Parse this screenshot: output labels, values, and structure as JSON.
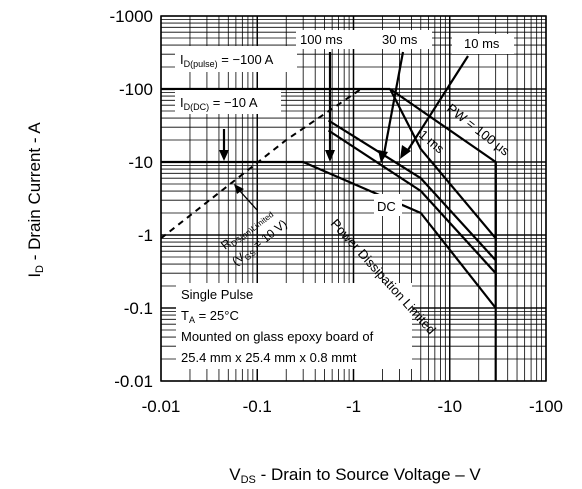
{
  "chart_data": {
    "type": "line",
    "x_scale": "log",
    "y_scale": "log",
    "xlabel_main": "V",
    "xlabel_sub": "DS",
    "xlabel_rest": " - Drain to Source Voltage – V",
    "ylabel_main": "I",
    "ylabel_sub": "D",
    "ylabel_rest": " - Drain Current - A",
    "xlim": [
      0.01,
      100
    ],
    "ylim": [
      0.01,
      1000
    ],
    "x_ticks": [
      {
        "value": 0.01,
        "label": "-0.01"
      },
      {
        "value": 0.1,
        "label": "-0.1"
      },
      {
        "value": 1,
        "label": "-1"
      },
      {
        "value": 10,
        "label": "-10"
      },
      {
        "value": 100,
        "label": "-100"
      }
    ],
    "y_ticks": [
      {
        "value": 1000,
        "label": "-1000"
      },
      {
        "value": 100,
        "label": "-100"
      },
      {
        "value": 10,
        "label": "-10"
      },
      {
        "value": 1,
        "label": "-1"
      },
      {
        "value": 0.1,
        "label": "-0.1"
      },
      {
        "value": 0.01,
        "label": "-0.01"
      }
    ],
    "grid": true,
    "series": [
      {
        "name": "10 ms",
        "points": [
          [
            2.4,
            100
          ],
          [
            30,
            10
          ],
          [
            30,
            0.2
          ]
        ]
      },
      {
        "name": "30 ms",
        "points": [
          [
            0.55,
            37
          ],
          [
            5,
            6
          ],
          [
            30,
            0.45
          ]
        ]
      },
      {
        "name": "100 ms",
        "points": [
          [
            0.55,
            27
          ],
          [
            5,
            4
          ],
          [
            30,
            0.3
          ]
        ]
      },
      {
        "name": "DC",
        "points": [
          [
            0.3,
            10
          ],
          [
            5,
            2
          ],
          [
            30,
            0.1
          ]
        ]
      },
      {
        "name": "1 ms",
        "points": [
          [
            2.4,
            100
          ],
          [
            5,
            15
          ],
          [
            30,
            0.9
          ]
        ]
      }
    ],
    "limit_lines": [
      {
        "name": "I_D(pulse) limit",
        "points": [
          [
            0.01,
            100
          ],
          [
            2.4,
            100
          ]
        ]
      },
      {
        "name": "I_D(DC) limit",
        "points": [
          [
            0.01,
            10
          ],
          [
            0.3,
            10
          ]
        ]
      },
      {
        "name": "V_DS max",
        "points": [
          [
            30,
            0.01
          ],
          [
            30,
            10
          ]
        ]
      },
      {
        "name": "R_DS(on) limit",
        "dashed": true,
        "points": [
          [
            0.01,
            0.9
          ],
          [
            0.2,
            20
          ],
          [
            1.2,
            100
          ]
        ]
      }
    ],
    "annotations": {
      "id_pulse_main": "I",
      "id_pulse_sub": "D(pulse)",
      "id_pulse_rest": " = −100 A",
      "id_dc_main": "I",
      "id_dc_sub": "D(DC)",
      "id_dc_rest": " = −10 A",
      "rds_main": "R",
      "rds_sub": "DS(on)Limited",
      "vgs_open": "(V",
      "vgs_sub": "GS",
      "vgs_rest": " = 10 V)",
      "label_100ms": "100 ms",
      "label_30ms": "30 ms",
      "label_10ms": "10 ms",
      "label_pw": "PW = 100 μs",
      "label_1ms": "1 ms",
      "label_dc": "DC",
      "label_pdl": "Power Dissipation Limited",
      "single_pulse": "Single Pulse",
      "ta_main": "T",
      "ta_sub": "A",
      "ta_rest": " = 25°C",
      "board_line1": "Mounted on glass epoxy board of",
      "board_line2": "25.4 mm x 25.4 mm x 0.8 mmt"
    }
  }
}
